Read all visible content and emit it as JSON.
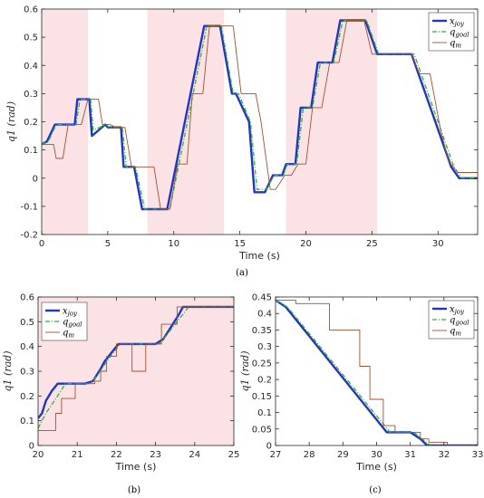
{
  "colors": {
    "x_joy": "#1f35c9",
    "q_goal": "#2fb52f",
    "q_m": "#a0522d",
    "shade": "#fbe3e5",
    "axis": "#262626"
  },
  "chart_data": [
    {
      "id": "a",
      "type": "line",
      "caption": "(a)",
      "xlabel": "Time (s)",
      "ylabel": "q1 (rad)",
      "xlim": [
        0,
        33
      ],
      "ylim": [
        -0.2,
        0.6
      ],
      "xticks": [
        0,
        5,
        10,
        15,
        20,
        25,
        30
      ],
      "yticks": [
        -0.2,
        -0.1,
        0,
        0.1,
        0.2,
        0.3,
        0.4,
        0.5,
        0.6
      ],
      "shaded_regions": [
        [
          0,
          3.5
        ],
        [
          8,
          13.8
        ],
        [
          18.5,
          25.4
        ]
      ],
      "legend": "top-right",
      "series": [
        {
          "name": "x_joy",
          "display": "x",
          "sub": "joy",
          "style": "solid",
          "width": 2.4,
          "x": [
            0,
            0.4,
            1.0,
            1.2,
            2.5,
            2.7,
            3.6,
            3.8,
            4.8,
            5.0,
            6.0,
            6.2,
            7.0,
            7.6,
            8.0,
            9.5,
            12.3,
            13.0,
            13.5,
            14.4,
            14.7,
            15.7,
            16.1,
            16.9,
            17.5,
            18.2,
            18.5,
            19.2,
            19.6,
            20.4,
            20.9,
            22.0,
            22.6,
            24.0,
            24.5,
            25.4,
            26.2,
            28.0,
            31.0,
            31.6,
            33
          ],
          "y": [
            0.12,
            0.13,
            0.19,
            0.19,
            0.19,
            0.28,
            0.28,
            0.15,
            0.19,
            0.18,
            0.18,
            0.04,
            0.04,
            -0.11,
            -0.11,
            -0.11,
            0.54,
            0.54,
            0.54,
            0.3,
            0.3,
            0.2,
            -0.05,
            -0.05,
            0.01,
            0.01,
            0.05,
            0.05,
            0.25,
            0.25,
            0.41,
            0.41,
            0.56,
            0.56,
            0.56,
            0.44,
            0.44,
            0.44,
            0.04,
            0.0,
            0.0
          ]
        },
        {
          "name": "q_goal",
          "display": "q",
          "sub": "goal",
          "style": "dashdot",
          "width": 1.3,
          "x": [
            0,
            0.5,
            1.1,
            1.4,
            2.6,
            2.9,
            3.7,
            3.9,
            4.9,
            5.1,
            6.1,
            6.4,
            7.1,
            7.8,
            8.1,
            9.7,
            12.5,
            13.2,
            13.6,
            14.5,
            14.9,
            15.8,
            16.3,
            17.0,
            17.6,
            18.3,
            18.6,
            19.3,
            19.8,
            20.5,
            21.1,
            22.1,
            22.8,
            24.1,
            24.6,
            25.5,
            26.3,
            28.2,
            31.2,
            31.8,
            33
          ],
          "y": [
            0.12,
            0.13,
            0.19,
            0.19,
            0.19,
            0.28,
            0.28,
            0.17,
            0.19,
            0.18,
            0.18,
            0.04,
            0.04,
            -0.11,
            -0.11,
            -0.11,
            0.54,
            0.54,
            0.54,
            0.3,
            0.3,
            0.2,
            -0.04,
            -0.04,
            0.01,
            0.01,
            0.05,
            0.05,
            0.25,
            0.25,
            0.41,
            0.41,
            0.56,
            0.56,
            0.56,
            0.44,
            0.44,
            0.44,
            0.04,
            0.0,
            0.0
          ]
        },
        {
          "name": "q_m",
          "display": "q",
          "sub": "m",
          "style": "solid",
          "width": 0.9,
          "x": [
            0,
            0.9,
            1.1,
            1.6,
            2.0,
            3.0,
            3.5,
            4.3,
            4.6,
            5.2,
            5.6,
            6.3,
            6.8,
            8.5,
            9.0,
            9.7,
            10.3,
            11.0,
            11.4,
            12.2,
            12.7,
            13.5,
            14.5,
            15.1,
            16.2,
            16.6,
            17.3,
            17.7,
            18.4,
            18.9,
            19.4,
            20.0,
            20.5,
            21.2,
            21.8,
            22.5,
            23.1,
            23.8,
            24.4,
            25.0,
            25.6,
            26.2,
            28.0,
            28.6,
            29.4,
            30.2,
            30.8,
            31.5,
            33
          ],
          "y": [
            0.12,
            0.12,
            0.07,
            0.07,
            0.19,
            0.19,
            0.28,
            0.28,
            0.19,
            0.19,
            0.18,
            0.18,
            0.04,
            0.04,
            -0.11,
            -0.11,
            0.05,
            0.05,
            0.3,
            0.3,
            0.54,
            0.54,
            0.54,
            0.3,
            0.3,
            0.2,
            -0.04,
            -0.04,
            0.01,
            0.01,
            0.05,
            0.05,
            0.25,
            0.25,
            0.41,
            0.41,
            0.56,
            0.56,
            0.56,
            0.44,
            0.44,
            0.44,
            0.44,
            0.37,
            0.37,
            0.17,
            0.06,
            0.02,
            0.02
          ]
        }
      ]
    },
    {
      "id": "b",
      "type": "line",
      "caption": "(b)",
      "xlabel": "Time (s)",
      "ylabel": "q1 (rad)",
      "xlim": [
        20,
        25
      ],
      "ylim": [
        0,
        0.6
      ],
      "xticks": [
        20,
        21,
        22,
        23,
        24,
        25
      ],
      "yticks": [
        0,
        0.1,
        0.2,
        0.3,
        0.4,
        0.5,
        0.6
      ],
      "shaded_regions": [
        [
          20,
          25
        ]
      ],
      "legend": "top-left",
      "series": [
        {
          "name": "x_joy",
          "display": "x",
          "sub": "joy",
          "style": "solid",
          "width": 2.4,
          "x": [
            20,
            20.1,
            20.2,
            20.35,
            20.5,
            21.2,
            21.4,
            21.6,
            21.7,
            22.0,
            22.05,
            23.0,
            23.2,
            23.4,
            23.6,
            23.7,
            25
          ],
          "y": [
            0.11,
            0.13,
            0.18,
            0.22,
            0.25,
            0.25,
            0.26,
            0.31,
            0.34,
            0.4,
            0.41,
            0.41,
            0.43,
            0.48,
            0.53,
            0.56,
            0.56
          ]
        },
        {
          "name": "q_goal",
          "display": "q",
          "sub": "goal",
          "style": "dashdot",
          "width": 1.3,
          "x": [
            20,
            20.2,
            20.5,
            20.7,
            21.3,
            21.5,
            21.8,
            22.1,
            23.1,
            23.3,
            23.6,
            23.85,
            25
          ],
          "y": [
            0.07,
            0.13,
            0.2,
            0.25,
            0.25,
            0.28,
            0.35,
            0.41,
            0.41,
            0.45,
            0.51,
            0.56,
            0.56
          ]
        },
        {
          "name": "q_m",
          "display": "q",
          "sub": "m",
          "style": "solid",
          "width": 0.9,
          "x": [
            20,
            20.2,
            20.2,
            20.45,
            20.45,
            20.6,
            20.6,
            20.95,
            20.95,
            21.45,
            21.45,
            21.6,
            21.6,
            21.75,
            21.75,
            22.0,
            22.0,
            22.4,
            22.4,
            22.75,
            22.75,
            23.15,
            23.15,
            23.55,
            23.55,
            23.95,
            23.95,
            25
          ],
          "y": [
            0.06,
            0.06,
            0.06,
            0.06,
            0.13,
            0.13,
            0.19,
            0.19,
            0.25,
            0.25,
            0.26,
            0.26,
            0.3,
            0.3,
            0.36,
            0.36,
            0.41,
            0.41,
            0.3,
            0.3,
            0.41,
            0.41,
            0.49,
            0.49,
            0.56,
            0.56,
            0.56,
            0.56
          ]
        }
      ]
    },
    {
      "id": "c",
      "type": "line",
      "caption": "(c)",
      "xlabel": "Time (s)",
      "ylabel": "q1 (rad)",
      "xlim": [
        27,
        33
      ],
      "ylim": [
        0,
        0.45
      ],
      "xticks": [
        27,
        28,
        29,
        30,
        31,
        32,
        33
      ],
      "yticks": [
        0,
        0.05,
        0.1,
        0.15,
        0.2,
        0.25,
        0.3,
        0.35,
        0.4,
        0.45
      ],
      "shaded_regions": [],
      "legend": "top-right",
      "series": [
        {
          "name": "x_joy",
          "display": "x",
          "sub": "joy",
          "style": "solid",
          "width": 2.4,
          "x": [
            27,
            27.3,
            30.3,
            31.0,
            31.3,
            31.5,
            33
          ],
          "y": [
            0.44,
            0.42,
            0.04,
            0.04,
            0.02,
            0.0,
            0.0
          ]
        },
        {
          "name": "q_goal",
          "display": "q",
          "sub": "goal",
          "style": "dashdot",
          "width": 1.3,
          "x": [
            27,
            27.35,
            30.4,
            31.1,
            31.35,
            31.6,
            33
          ],
          "y": [
            0.44,
            0.42,
            0.04,
            0.04,
            0.02,
            0.0,
            0.0
          ]
        },
        {
          "name": "q_m",
          "display": "q",
          "sub": "m",
          "style": "solid",
          "width": 0.9,
          "x": [
            27,
            27.6,
            27.6,
            28.6,
            28.6,
            29.5,
            29.5,
            29.8,
            29.8,
            30.2,
            30.2,
            30.55,
            30.55,
            31.3,
            31.3,
            31.55,
            31.55,
            32.1,
            32.1,
            33
          ],
          "y": [
            0.44,
            0.44,
            0.43,
            0.43,
            0.35,
            0.35,
            0.24,
            0.24,
            0.14,
            0.14,
            0.06,
            0.06,
            0.04,
            0.04,
            0.02,
            0.02,
            0.01,
            0.01,
            0.0,
            0.0
          ]
        }
      ]
    }
  ]
}
